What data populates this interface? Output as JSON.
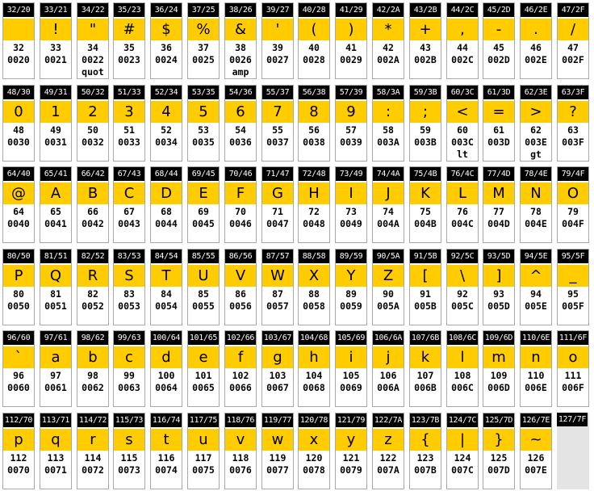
{
  "table_title": "",
  "cells": [
    {
      "hdr": "32/20",
      "char": "",
      "dec": "32",
      "hex": "0020",
      "ent": ""
    },
    {
      "hdr": "33/21",
      "char": "!",
      "dec": "33",
      "hex": "0021",
      "ent": ""
    },
    {
      "hdr": "34/22",
      "char": "\"",
      "dec": "34",
      "hex": "0022",
      "ent": "quot"
    },
    {
      "hdr": "35/23",
      "char": "#",
      "dec": "35",
      "hex": "0023",
      "ent": ""
    },
    {
      "hdr": "36/24",
      "char": "$",
      "dec": "36",
      "hex": "0024",
      "ent": ""
    },
    {
      "hdr": "37/25",
      "char": "%",
      "dec": "37",
      "hex": "0025",
      "ent": ""
    },
    {
      "hdr": "38/26",
      "char": "&",
      "dec": "38",
      "hex": "0026",
      "ent": "amp"
    },
    {
      "hdr": "39/27",
      "char": "'",
      "dec": "39",
      "hex": "0027",
      "ent": ""
    },
    {
      "hdr": "40/28",
      "char": "(",
      "dec": "40",
      "hex": "0028",
      "ent": ""
    },
    {
      "hdr": "41/29",
      "char": ")",
      "dec": "41",
      "hex": "0029",
      "ent": ""
    },
    {
      "hdr": "42/2A",
      "char": "*",
      "dec": "42",
      "hex": "002A",
      "ent": ""
    },
    {
      "hdr": "43/2B",
      "char": "+",
      "dec": "43",
      "hex": "002B",
      "ent": ""
    },
    {
      "hdr": "44/2C",
      "char": ",",
      "dec": "44",
      "hex": "002C",
      "ent": ""
    },
    {
      "hdr": "45/2D",
      "char": "-",
      "dec": "45",
      "hex": "002D",
      "ent": ""
    },
    {
      "hdr": "46/2E",
      "char": ".",
      "dec": "46",
      "hex": "002E",
      "ent": ""
    },
    {
      "hdr": "47/2F",
      "char": "/",
      "dec": "47",
      "hex": "002F",
      "ent": ""
    },
    {
      "hdr": "48/30",
      "char": "0",
      "dec": "48",
      "hex": "0030",
      "ent": ""
    },
    {
      "hdr": "49/31",
      "char": "1",
      "dec": "49",
      "hex": "0031",
      "ent": ""
    },
    {
      "hdr": "50/32",
      "char": "2",
      "dec": "50",
      "hex": "0032",
      "ent": ""
    },
    {
      "hdr": "51/33",
      "char": "3",
      "dec": "51",
      "hex": "0033",
      "ent": ""
    },
    {
      "hdr": "52/34",
      "char": "4",
      "dec": "52",
      "hex": "0034",
      "ent": ""
    },
    {
      "hdr": "53/35",
      "char": "5",
      "dec": "53",
      "hex": "0035",
      "ent": ""
    },
    {
      "hdr": "54/36",
      "char": "6",
      "dec": "54",
      "hex": "0036",
      "ent": ""
    },
    {
      "hdr": "55/37",
      "char": "7",
      "dec": "55",
      "hex": "0037",
      "ent": ""
    },
    {
      "hdr": "56/38",
      "char": "8",
      "dec": "56",
      "hex": "0038",
      "ent": ""
    },
    {
      "hdr": "57/39",
      "char": "9",
      "dec": "57",
      "hex": "0039",
      "ent": ""
    },
    {
      "hdr": "58/3A",
      "char": ":",
      "dec": "58",
      "hex": "003A",
      "ent": ""
    },
    {
      "hdr": "59/3B",
      "char": ";",
      "dec": "59",
      "hex": "003B",
      "ent": ""
    },
    {
      "hdr": "60/3C",
      "char": "<",
      "dec": "60",
      "hex": "003C",
      "ent": "lt"
    },
    {
      "hdr": "61/3D",
      "char": "=",
      "dec": "61",
      "hex": "003D",
      "ent": ""
    },
    {
      "hdr": "62/3E",
      "char": ">",
      "dec": "62",
      "hex": "003E",
      "ent": "gt"
    },
    {
      "hdr": "63/3F",
      "char": "?",
      "dec": "63",
      "hex": "003F",
      "ent": ""
    },
    {
      "hdr": "64/40",
      "char": "@",
      "dec": "64",
      "hex": "0040",
      "ent": ""
    },
    {
      "hdr": "65/41",
      "char": "A",
      "dec": "65",
      "hex": "0041",
      "ent": ""
    },
    {
      "hdr": "66/42",
      "char": "B",
      "dec": "66",
      "hex": "0042",
      "ent": ""
    },
    {
      "hdr": "67/43",
      "char": "C",
      "dec": "67",
      "hex": "0043",
      "ent": ""
    },
    {
      "hdr": "68/44",
      "char": "D",
      "dec": "68",
      "hex": "0044",
      "ent": ""
    },
    {
      "hdr": "69/45",
      "char": "E",
      "dec": "69",
      "hex": "0045",
      "ent": ""
    },
    {
      "hdr": "70/46",
      "char": "F",
      "dec": "70",
      "hex": "0046",
      "ent": ""
    },
    {
      "hdr": "71/47",
      "char": "G",
      "dec": "71",
      "hex": "0047",
      "ent": ""
    },
    {
      "hdr": "72/48",
      "char": "H",
      "dec": "72",
      "hex": "0048",
      "ent": ""
    },
    {
      "hdr": "73/49",
      "char": "I",
      "dec": "73",
      "hex": "0049",
      "ent": ""
    },
    {
      "hdr": "74/4A",
      "char": "J",
      "dec": "74",
      "hex": "004A",
      "ent": ""
    },
    {
      "hdr": "75/4B",
      "char": "K",
      "dec": "75",
      "hex": "004B",
      "ent": ""
    },
    {
      "hdr": "76/4C",
      "char": "L",
      "dec": "76",
      "hex": "004C",
      "ent": ""
    },
    {
      "hdr": "77/4D",
      "char": "M",
      "dec": "77",
      "hex": "004D",
      "ent": ""
    },
    {
      "hdr": "78/4E",
      "char": "N",
      "dec": "78",
      "hex": "004E",
      "ent": ""
    },
    {
      "hdr": "79/4F",
      "char": "O",
      "dec": "79",
      "hex": "004F",
      "ent": ""
    },
    {
      "hdr": "80/50",
      "char": "P",
      "dec": "80",
      "hex": "0050",
      "ent": ""
    },
    {
      "hdr": "81/51",
      "char": "Q",
      "dec": "81",
      "hex": "0051",
      "ent": ""
    },
    {
      "hdr": "82/52",
      "char": "R",
      "dec": "82",
      "hex": "0052",
      "ent": ""
    },
    {
      "hdr": "83/53",
      "char": "S",
      "dec": "83",
      "hex": "0053",
      "ent": ""
    },
    {
      "hdr": "84/54",
      "char": "T",
      "dec": "84",
      "hex": "0054",
      "ent": ""
    },
    {
      "hdr": "85/55",
      "char": "U",
      "dec": "85",
      "hex": "0055",
      "ent": ""
    },
    {
      "hdr": "86/56",
      "char": "V",
      "dec": "86",
      "hex": "0056",
      "ent": ""
    },
    {
      "hdr": "87/57",
      "char": "W",
      "dec": "87",
      "hex": "0057",
      "ent": ""
    },
    {
      "hdr": "88/58",
      "char": "X",
      "dec": "88",
      "hex": "0058",
      "ent": ""
    },
    {
      "hdr": "89/59",
      "char": "Y",
      "dec": "89",
      "hex": "0059",
      "ent": ""
    },
    {
      "hdr": "90/5A",
      "char": "Z",
      "dec": "90",
      "hex": "005A",
      "ent": ""
    },
    {
      "hdr": "91/5B",
      "char": "[",
      "dec": "91",
      "hex": "005B",
      "ent": ""
    },
    {
      "hdr": "92/5C",
      "char": "\\",
      "dec": "92",
      "hex": "005C",
      "ent": ""
    },
    {
      "hdr": "93/5D",
      "char": "]",
      "dec": "93",
      "hex": "005D",
      "ent": ""
    },
    {
      "hdr": "94/5E",
      "char": "^",
      "dec": "94",
      "hex": "005E",
      "ent": ""
    },
    {
      "hdr": "95/5F",
      "char": "_",
      "dec": "95",
      "hex": "005F",
      "ent": ""
    },
    {
      "hdr": "96/60",
      "char": "`",
      "dec": "96",
      "hex": "0060",
      "ent": ""
    },
    {
      "hdr": "97/61",
      "char": "a",
      "dec": "97",
      "hex": "0061",
      "ent": ""
    },
    {
      "hdr": "98/62",
      "char": "b",
      "dec": "98",
      "hex": "0062",
      "ent": ""
    },
    {
      "hdr": "99/63",
      "char": "c",
      "dec": "99",
      "hex": "0063",
      "ent": ""
    },
    {
      "hdr": "100/64",
      "char": "d",
      "dec": "100",
      "hex": "0064",
      "ent": ""
    },
    {
      "hdr": "101/65",
      "char": "e",
      "dec": "101",
      "hex": "0065",
      "ent": ""
    },
    {
      "hdr": "102/66",
      "char": "f",
      "dec": "102",
      "hex": "0066",
      "ent": ""
    },
    {
      "hdr": "103/67",
      "char": "g",
      "dec": "103",
      "hex": "0067",
      "ent": ""
    },
    {
      "hdr": "104/68",
      "char": "h",
      "dec": "104",
      "hex": "0068",
      "ent": ""
    },
    {
      "hdr": "105/69",
      "char": "i",
      "dec": "105",
      "hex": "0069",
      "ent": ""
    },
    {
      "hdr": "106/6A",
      "char": "j",
      "dec": "106",
      "hex": "006A",
      "ent": ""
    },
    {
      "hdr": "107/6B",
      "char": "k",
      "dec": "107",
      "hex": "006B",
      "ent": ""
    },
    {
      "hdr": "108/6C",
      "char": "l",
      "dec": "108",
      "hex": "006C",
      "ent": ""
    },
    {
      "hdr": "109/6D",
      "char": "m",
      "dec": "109",
      "hex": "006D",
      "ent": ""
    },
    {
      "hdr": "110/6E",
      "char": "n",
      "dec": "110",
      "hex": "006E",
      "ent": ""
    },
    {
      "hdr": "111/6F",
      "char": "o",
      "dec": "111",
      "hex": "006F",
      "ent": ""
    },
    {
      "hdr": "112/70",
      "char": "p",
      "dec": "112",
      "hex": "0070",
      "ent": ""
    },
    {
      "hdr": "113/71",
      "char": "q",
      "dec": "113",
      "hex": "0071",
      "ent": ""
    },
    {
      "hdr": "114/72",
      "char": "r",
      "dec": "114",
      "hex": "0072",
      "ent": ""
    },
    {
      "hdr": "115/73",
      "char": "s",
      "dec": "115",
      "hex": "0073",
      "ent": ""
    },
    {
      "hdr": "116/74",
      "char": "t",
      "dec": "116",
      "hex": "0074",
      "ent": ""
    },
    {
      "hdr": "117/75",
      "char": "u",
      "dec": "117",
      "hex": "0075",
      "ent": ""
    },
    {
      "hdr": "118/76",
      "char": "v",
      "dec": "118",
      "hex": "0076",
      "ent": ""
    },
    {
      "hdr": "119/77",
      "char": "w",
      "dec": "119",
      "hex": "0077",
      "ent": ""
    },
    {
      "hdr": "120/78",
      "char": "x",
      "dec": "120",
      "hex": "0078",
      "ent": ""
    },
    {
      "hdr": "121/79",
      "char": "y",
      "dec": "121",
      "hex": "0079",
      "ent": ""
    },
    {
      "hdr": "122/7A",
      "char": "z",
      "dec": "122",
      "hex": "007A",
      "ent": ""
    },
    {
      "hdr": "123/7B",
      "char": "{",
      "dec": "123",
      "hex": "007B",
      "ent": ""
    },
    {
      "hdr": "124/7C",
      "char": "|",
      "dec": "124",
      "hex": "007C",
      "ent": ""
    },
    {
      "hdr": "125/7D",
      "char": "}",
      "dec": "125",
      "hex": "007D",
      "ent": ""
    },
    {
      "hdr": "126/7E",
      "char": "~",
      "dec": "126",
      "hex": "007E",
      "ent": ""
    },
    {
      "hdr": "127/7F",
      "char": "",
      "dec": "",
      "hex": "",
      "ent": "",
      "empty": true
    }
  ],
  "colors": {
    "header_bg": "#000000",
    "header_text": "#ffffff",
    "glyph_bg": "#ffcc00",
    "cell_border": "#a8a8a8",
    "empty_cell_bg": "#e4e4e4"
  }
}
